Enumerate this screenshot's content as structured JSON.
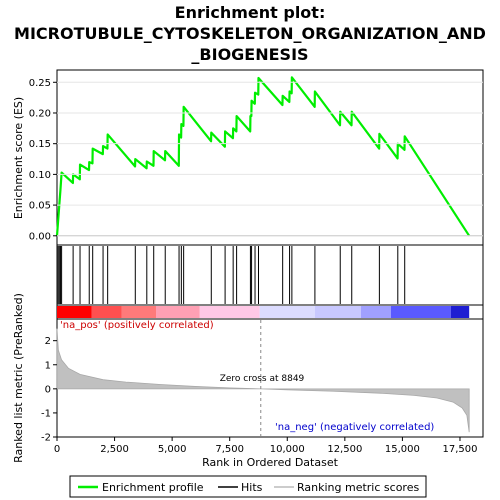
{
  "chart_data": {
    "type": "line",
    "title_lines": [
      "Enrichment plot:",
      "MICROTUBULE_CYTOSKELETON_ORGANIZATION_AND",
      "_BIOGENESIS"
    ],
    "xlabel": "Rank in Ordered Dataset",
    "ylabel_top": "Enrichment score (ES)",
    "ylabel_bottom": "Ranked list metric (PreRanked)",
    "xlim": [
      0,
      18500
    ],
    "ylim_top": [
      -0.015,
      0.27
    ],
    "ylim_bottom": [
      -2,
      2.9
    ],
    "x_ticks": [
      0,
      2500,
      5000,
      7500,
      10000,
      12500,
      15000,
      17500
    ],
    "x_tick_labels": [
      "0",
      "2,500",
      "5,000",
      "7,500",
      "10,000",
      "12,500",
      "15,000",
      "17,500"
    ],
    "y_ticks_top": [
      0.0,
      0.05,
      0.1,
      0.15,
      0.2,
      0.25
    ],
    "y_tick_labels_top": [
      "0.00",
      "0.05",
      "0.10",
      "0.15",
      "0.20",
      "0.25"
    ],
    "y_ticks_bottom": [
      -2,
      -1,
      0,
      1,
      2
    ],
    "y_tick_labels_bottom": [
      "-2",
      "-1",
      "0",
      "1",
      "2"
    ],
    "hits": [
      50,
      100,
      150,
      200,
      700,
      1000,
      1400,
      1550,
      2000,
      2200,
      3400,
      3900,
      4200,
      4700,
      5300,
      5400,
      5500,
      6700,
      7300,
      7650,
      7800,
      8400,
      8450,
      8600,
      8750,
      9800,
      10100,
      10200,
      11200,
      12300,
      12800,
      14000,
      14800,
      15100
    ],
    "es_points": [
      {
        "x": 0,
        "y": 0.0
      },
      {
        "x": 50,
        "y": 0.025
      },
      {
        "x": 100,
        "y": 0.05
      },
      {
        "x": 150,
        "y": 0.075
      },
      {
        "x": 200,
        "y": 0.103
      },
      {
        "x": 690,
        "y": 0.086
      },
      {
        "x": 700,
        "y": 0.1
      },
      {
        "x": 990,
        "y": 0.092
      },
      {
        "x": 1000,
        "y": 0.116
      },
      {
        "x": 1390,
        "y": 0.107
      },
      {
        "x": 1400,
        "y": 0.12
      },
      {
        "x": 1540,
        "y": 0.118
      },
      {
        "x": 1550,
        "y": 0.142
      },
      {
        "x": 1990,
        "y": 0.133
      },
      {
        "x": 2000,
        "y": 0.146
      },
      {
        "x": 2190,
        "y": 0.142
      },
      {
        "x": 2200,
        "y": 0.165
      },
      {
        "x": 3390,
        "y": 0.113
      },
      {
        "x": 3400,
        "y": 0.125
      },
      {
        "x": 3890,
        "y": 0.11
      },
      {
        "x": 3900,
        "y": 0.121
      },
      {
        "x": 4190,
        "y": 0.114
      },
      {
        "x": 4200,
        "y": 0.138
      },
      {
        "x": 4690,
        "y": 0.123
      },
      {
        "x": 4700,
        "y": 0.138
      },
      {
        "x": 5290,
        "y": 0.114
      },
      {
        "x": 5300,
        "y": 0.165
      },
      {
        "x": 5390,
        "y": 0.16
      },
      {
        "x": 5400,
        "y": 0.182
      },
      {
        "x": 5490,
        "y": 0.179
      },
      {
        "x": 5500,
        "y": 0.21
      },
      {
        "x": 6690,
        "y": 0.154
      },
      {
        "x": 6700,
        "y": 0.168
      },
      {
        "x": 7290,
        "y": 0.145
      },
      {
        "x": 7300,
        "y": 0.17
      },
      {
        "x": 7640,
        "y": 0.159
      },
      {
        "x": 7650,
        "y": 0.175
      },
      {
        "x": 7790,
        "y": 0.17
      },
      {
        "x": 7800,
        "y": 0.195
      },
      {
        "x": 8390,
        "y": 0.17
      },
      {
        "x": 8400,
        "y": 0.195
      },
      {
        "x": 8440,
        "y": 0.195
      },
      {
        "x": 8450,
        "y": 0.22
      },
      {
        "x": 8590,
        "y": 0.215
      },
      {
        "x": 8600,
        "y": 0.233
      },
      {
        "x": 8740,
        "y": 0.23
      },
      {
        "x": 8750,
        "y": 0.257
      },
      {
        "x": 9790,
        "y": 0.213
      },
      {
        "x": 9800,
        "y": 0.228
      },
      {
        "x": 10090,
        "y": 0.218
      },
      {
        "x": 10100,
        "y": 0.235
      },
      {
        "x": 10190,
        "y": 0.232
      },
      {
        "x": 10200,
        "y": 0.258
      },
      {
        "x": 11190,
        "y": 0.21
      },
      {
        "x": 11200,
        "y": 0.235
      },
      {
        "x": 12290,
        "y": 0.18
      },
      {
        "x": 12300,
        "y": 0.202
      },
      {
        "x": 12790,
        "y": 0.18
      },
      {
        "x": 12800,
        "y": 0.202
      },
      {
        "x": 13990,
        "y": 0.142
      },
      {
        "x": 14000,
        "y": 0.166
      },
      {
        "x": 14790,
        "y": 0.126
      },
      {
        "x": 14800,
        "y": 0.15
      },
      {
        "x": 15090,
        "y": 0.14
      },
      {
        "x": 15100,
        "y": 0.162
      },
      {
        "x": 17900,
        "y": 0.0
      }
    ],
    "metric_curve": [
      {
        "x": 0,
        "y": 2.5
      },
      {
        "x": 60,
        "y": 1.6
      },
      {
        "x": 200,
        "y": 1.2
      },
      {
        "x": 500,
        "y": 0.85
      },
      {
        "x": 1000,
        "y": 0.6
      },
      {
        "x": 2000,
        "y": 0.38
      },
      {
        "x": 3000,
        "y": 0.28
      },
      {
        "x": 4500,
        "y": 0.18
      },
      {
        "x": 6000,
        "y": 0.1
      },
      {
        "x": 7500,
        "y": 0.04
      },
      {
        "x": 8849,
        "y": 0.0
      },
      {
        "x": 10000,
        "y": -0.04
      },
      {
        "x": 12000,
        "y": -0.1
      },
      {
        "x": 14000,
        "y": -0.18
      },
      {
        "x": 15500,
        "y": -0.27
      },
      {
        "x": 16500,
        "y": -0.38
      },
      {
        "x": 17200,
        "y": -0.55
      },
      {
        "x": 17600,
        "y": -0.8
      },
      {
        "x": 17800,
        "y": -1.1
      },
      {
        "x": 17900,
        "y": -1.8
      }
    ],
    "heat_segments": [
      {
        "from": 0,
        "to": 1500,
        "color": "#ff0000"
      },
      {
        "from": 1500,
        "to": 2800,
        "color": "#ff5050"
      },
      {
        "from": 2800,
        "to": 4300,
        "color": "#ff7a7a"
      },
      {
        "from": 4300,
        "to": 6200,
        "color": "#ffa0b4"
      },
      {
        "from": 6200,
        "to": 8800,
        "color": "#ffc8e6"
      },
      {
        "from": 8800,
        "to": 11200,
        "color": "#dcdcff"
      },
      {
        "from": 11200,
        "to": 13200,
        "color": "#c8c8ff"
      },
      {
        "from": 13200,
        "to": 14500,
        "color": "#a0a0ff"
      },
      {
        "from": 14500,
        "to": 17100,
        "color": "#5a5aff"
      },
      {
        "from": 17100,
        "to": 17900,
        "color": "#1e1ed2"
      }
    ],
    "zero_cross": 8849,
    "zero_cross_label": "Zero cross at 8849",
    "pos_label": "'na_pos' (positively correlated)",
    "neg_label": "'na_neg' (negatively correlated)",
    "legend": [
      {
        "name": "Enrichment profile",
        "color": "#00ee00"
      },
      {
        "name": "Hits",
        "color": "#000000"
      },
      {
        "name": "Ranking metric scores",
        "color": "#bbbbbb"
      }
    ]
  }
}
